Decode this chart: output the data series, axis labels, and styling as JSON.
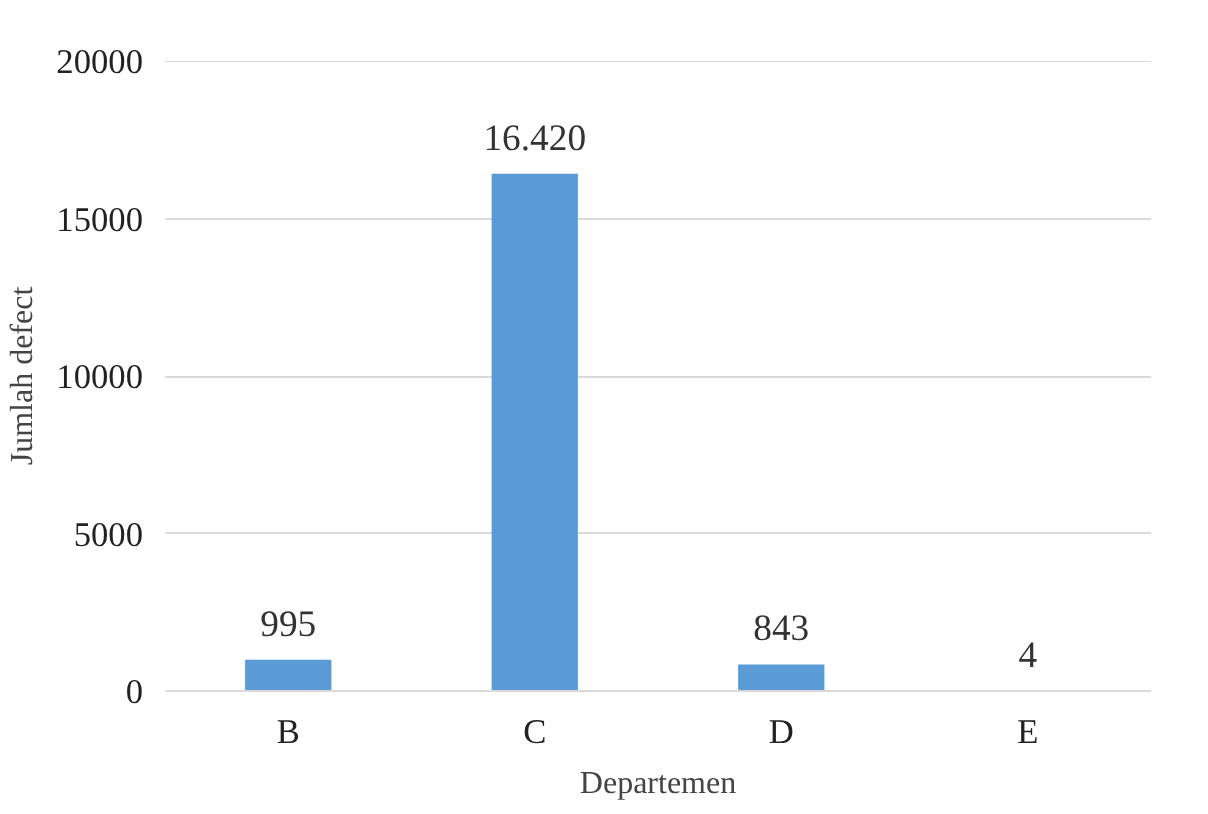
{
  "chart_data": {
    "type": "bar",
    "xlabel": "Departemen",
    "ylabel": "Jumlah defect",
    "categories": [
      "B",
      "C",
      "D",
      "E"
    ],
    "values": [
      995,
      16420,
      843,
      4
    ],
    "value_labels": [
      "995",
      "16.420",
      "843",
      "4"
    ],
    "color": "#5b9bd5",
    "ylim": [
      0,
      20000
    ],
    "yticks": [
      0,
      5000,
      10000,
      15000,
      20000
    ],
    "grid": "y"
  }
}
